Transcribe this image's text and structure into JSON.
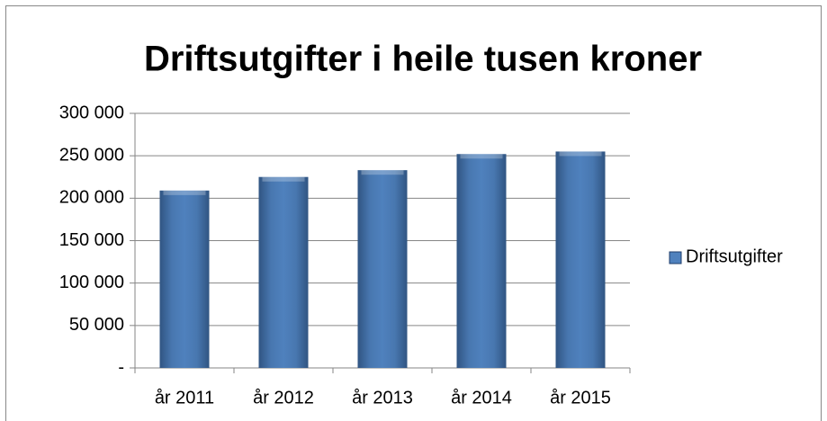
{
  "chart_data": {
    "type": "bar",
    "title": "Driftsutgifter i heile tusen kroner",
    "categories": [
      "år 2011",
      "år 2012",
      "år 2013",
      "år 2014",
      "år 2015"
    ],
    "series": [
      {
        "name": "Driftsutgifter",
        "color": "#4f81bd",
        "values": [
          209000,
          225000,
          233000,
          252000,
          255000
        ]
      }
    ],
    "ylim": [
      0,
      300000
    ],
    "yticks": [
      {
        "value": 0,
        "label": "-"
      },
      {
        "value": 50000,
        "label": "50 000"
      },
      {
        "value": 100000,
        "label": "100 000"
      },
      {
        "value": 150000,
        "label": "150 000"
      },
      {
        "value": 200000,
        "label": "200 000"
      },
      {
        "value": 250000,
        "label": "250 000"
      },
      {
        "value": 300000,
        "label": "300 000"
      }
    ],
    "grid": true,
    "legend": "right"
  }
}
